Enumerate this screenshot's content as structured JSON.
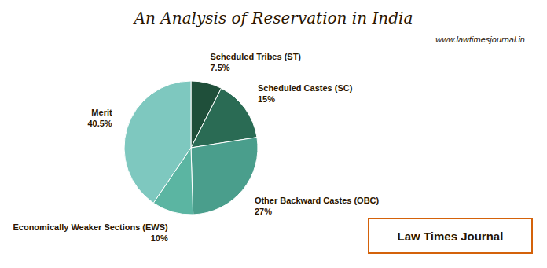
{
  "chart_data": {
    "type": "pie",
    "title": "An Analysis of Reservation in India",
    "categories": [
      "Scheduled Tribes (ST)",
      "Scheduled Castes (SC)",
      "Other Backward Castes (OBC)",
      "Economically Weaker Sections (EWS)",
      "Merit"
    ],
    "values": [
      7.5,
      15,
      27,
      10,
      40.5
    ],
    "colors": [
      "#1F4F3A",
      "#2A6B54",
      "#4A9E8C",
      "#5BB5A2",
      "#7EC8BF"
    ],
    "data_labels": true,
    "value_labels": [
      "7.5%",
      "15%",
      "27%",
      "10%",
      "40.5%"
    ],
    "annotations": [
      "www.lawtimesjournal.in",
      "Law Times Journal"
    ]
  }
}
